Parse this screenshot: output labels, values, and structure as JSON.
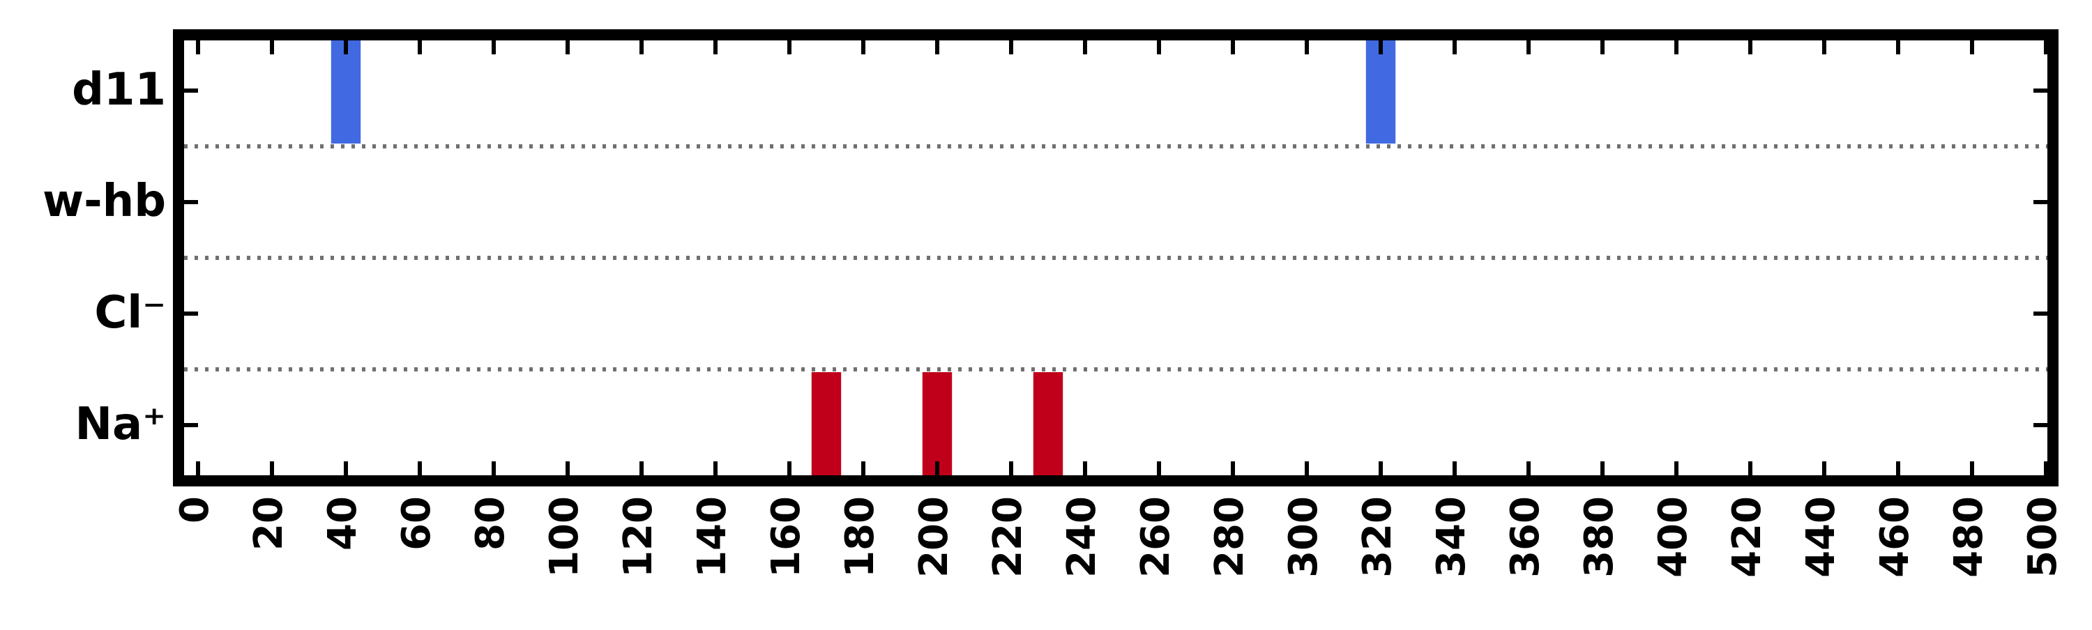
{
  "chart_data": {
    "type": "event-raster",
    "title": "",
    "xlabel": "",
    "ylabel": "",
    "xlim": [
      -5,
      503
    ],
    "x_ticks": [
      0,
      20,
      40,
      60,
      80,
      100,
      120,
      140,
      160,
      180,
      200,
      220,
      240,
      260,
      280,
      300,
      320,
      340,
      360,
      380,
      400,
      420,
      440,
      460,
      480,
      500
    ],
    "categories": [
      "d11",
      "w-hb",
      "Cl⁻",
      "Na⁺"
    ],
    "separator_style": "dotted-gray",
    "series": [
      {
        "category": "d11",
        "color": "#4169e1",
        "events": [
          [
            36,
            44
          ],
          [
            316,
            324
          ]
        ]
      },
      {
        "category": "w-hb",
        "color": "#4169e1",
        "events": []
      },
      {
        "category": "Cl⁻",
        "color": "#c0001a",
        "events": []
      },
      {
        "category": "Na⁺",
        "color": "#c0001a",
        "events": [
          [
            166,
            174
          ],
          [
            196,
            204
          ],
          [
            226,
            234
          ]
        ]
      }
    ]
  }
}
